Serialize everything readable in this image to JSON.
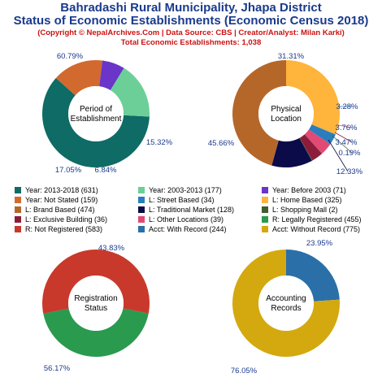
{
  "header": {
    "title_line1": "Bahradashi Rural Municipality, Jhapa District",
    "title_line2": "Status of Economic Establishments (Economic Census 2018)",
    "copyright": "(Copyright © NepalArchives.Com | Data Source: CBS | Creator/Analyst: Milan Karki)",
    "total": "Total Economic Establishments: 1,038"
  },
  "chart_data": [
    {
      "type": "pie",
      "title": "Period of Establishment",
      "center_lines": [
        "Period of",
        "Establishment"
      ],
      "series": [
        {
          "label": "Year: 2013-2018 (631)",
          "value": 631,
          "percent": "60.79%",
          "color": "#0e6b66"
        },
        {
          "label": "Year: Not Stated (159)",
          "value": 159,
          "percent": "15.32%",
          "color": "#d2692f"
        },
        {
          "label": "Year: Before 2003 (71)",
          "value": 71,
          "percent": "6.84%",
          "color": "#6a35c8"
        },
        {
          "label": "Year: 2003-2013 (177)",
          "value": 177,
          "percent": "17.05%",
          "color": "#6ccf98"
        }
      ]
    },
    {
      "type": "pie",
      "title": "Physical Location",
      "center_lines": [
        "Physical",
        "Location"
      ],
      "series": [
        {
          "label": "L: Home Based (325)",
          "value": 325,
          "percent": "31.31%",
          "color": "#ffb43c"
        },
        {
          "label": "L: Street Based (34)",
          "value": 34,
          "percent": "3.28%",
          "color": "#2a7dbf"
        },
        {
          "label": "L: Other Locations (39)",
          "value": 39,
          "percent": "3.76%",
          "color": "#e14a74"
        },
        {
          "label": "L: Exclusive Building (36)",
          "value": 36,
          "percent": "3.47%",
          "color": "#8c1d3a"
        },
        {
          "label": "L: Shopping Mall (2)",
          "value": 2,
          "percent": "0.19%",
          "color": "#3e5e2e"
        },
        {
          "label": "L: Traditional Market (128)",
          "value": 128,
          "percent": "12.33%",
          "color": "#0b0b4a"
        },
        {
          "label": "L: Brand Based (474)",
          "value": 474,
          "percent": "45.66%",
          "color": "#b5672a"
        }
      ]
    },
    {
      "type": "pie",
      "title": "Registration Status",
      "center_lines": [
        "Registration",
        "Status"
      ],
      "series": [
        {
          "label": "R: Legally Registered (455)",
          "value": 455,
          "percent": "43.83%",
          "color": "#2a9a4e"
        },
        {
          "label": "R: Not Registered (583)",
          "value": 583,
          "percent": "56.17%",
          "color": "#c8392b"
        }
      ]
    },
    {
      "type": "pie",
      "title": "Accounting Records",
      "center_lines": [
        "Accounting",
        "Records"
      ],
      "series": [
        {
          "label": "Acct: With Record (244)",
          "value": 244,
          "percent": "23.95%",
          "color": "#2b6fa8"
        },
        {
          "label": "Acct: Without Record (775)",
          "value": 775,
          "percent": "76.05%",
          "color": "#d4a90f"
        }
      ]
    }
  ],
  "legend": [
    {
      "label": "Year: 2013-2018 (631)",
      "color": "#0e6b66"
    },
    {
      "label": "Year: 2003-2013 (177)",
      "color": "#6ccf98"
    },
    {
      "label": "Year: Before 2003 (71)",
      "color": "#6a35c8"
    },
    {
      "label": "Year: Not Stated (159)",
      "color": "#d2692f"
    },
    {
      "label": "L: Street Based (34)",
      "color": "#2a7dbf"
    },
    {
      "label": "L: Home Based (325)",
      "color": "#ffb43c"
    },
    {
      "label": "L: Brand Based (474)",
      "color": "#b5672a"
    },
    {
      "label": "L: Traditional Market (128)",
      "color": "#0b0b4a"
    },
    {
      "label": "L: Shopping Mall (2)",
      "color": "#3e5e2e"
    },
    {
      "label": "L: Exclusive Building (36)",
      "color": "#8c1d3a"
    },
    {
      "label": "L: Other Locations (39)",
      "color": "#e14a74"
    },
    {
      "label": "R: Legally Registered (455)",
      "color": "#2a9a4e"
    },
    {
      "label": "R: Not Registered (583)",
      "color": "#c8392b"
    },
    {
      "label": "Acct: With Record (244)",
      "color": "#2b6fa8"
    },
    {
      "label": "Acct: Without Record (775)",
      "color": "#d4a90f"
    }
  ]
}
